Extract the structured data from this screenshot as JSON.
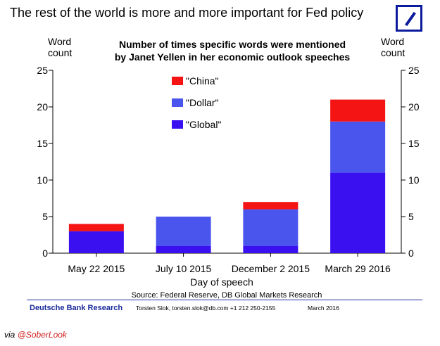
{
  "headline": "The rest of the world is more and more important for Fed policy",
  "footer": {
    "brand": "Deutsche Bank Research",
    "contact": "Torsten Slok, torsten.slok@db.com  +1 212 250-2155",
    "date": "March 2016"
  },
  "via": {
    "prefix": "via ",
    "handle": "@SoberLook"
  },
  "chart_data": {
    "type": "bar",
    "stacked": true,
    "title": "Number of times specific words were mentioned by Janet Yellen in her economic outlook speeches",
    "title_lines": [
      "Number of times specific words were mentioned",
      "by Janet Yellen in her economic outlook speeches"
    ],
    "ylabel_left": [
      "Word",
      "count"
    ],
    "ylabel_right": [
      "Word",
      "count"
    ],
    "xlabel": "Day of speech",
    "source": "Source: Federal Reserve, DB Global Markets Research",
    "categories": [
      "May 22 2015",
      "July 10 2015",
      "December 2 2015",
      "March 29 2016"
    ],
    "series": [
      {
        "name": "\"Global\"",
        "color": "#3a10f0",
        "values": [
          3,
          1,
          1,
          11
        ]
      },
      {
        "name": "\"Dollar\"",
        "color": "#4a55ee",
        "values": [
          0,
          4,
          5,
          7
        ]
      },
      {
        "name": "\"China\"",
        "color": "#f41414",
        "values": [
          1,
          0,
          1,
          3
        ]
      }
    ],
    "legend_order": [
      2,
      1,
      0
    ],
    "ylim": [
      0,
      25
    ],
    "yticks": [
      0,
      5,
      10,
      15,
      20,
      25
    ],
    "grid": false,
    "legend_position": "top-left"
  }
}
